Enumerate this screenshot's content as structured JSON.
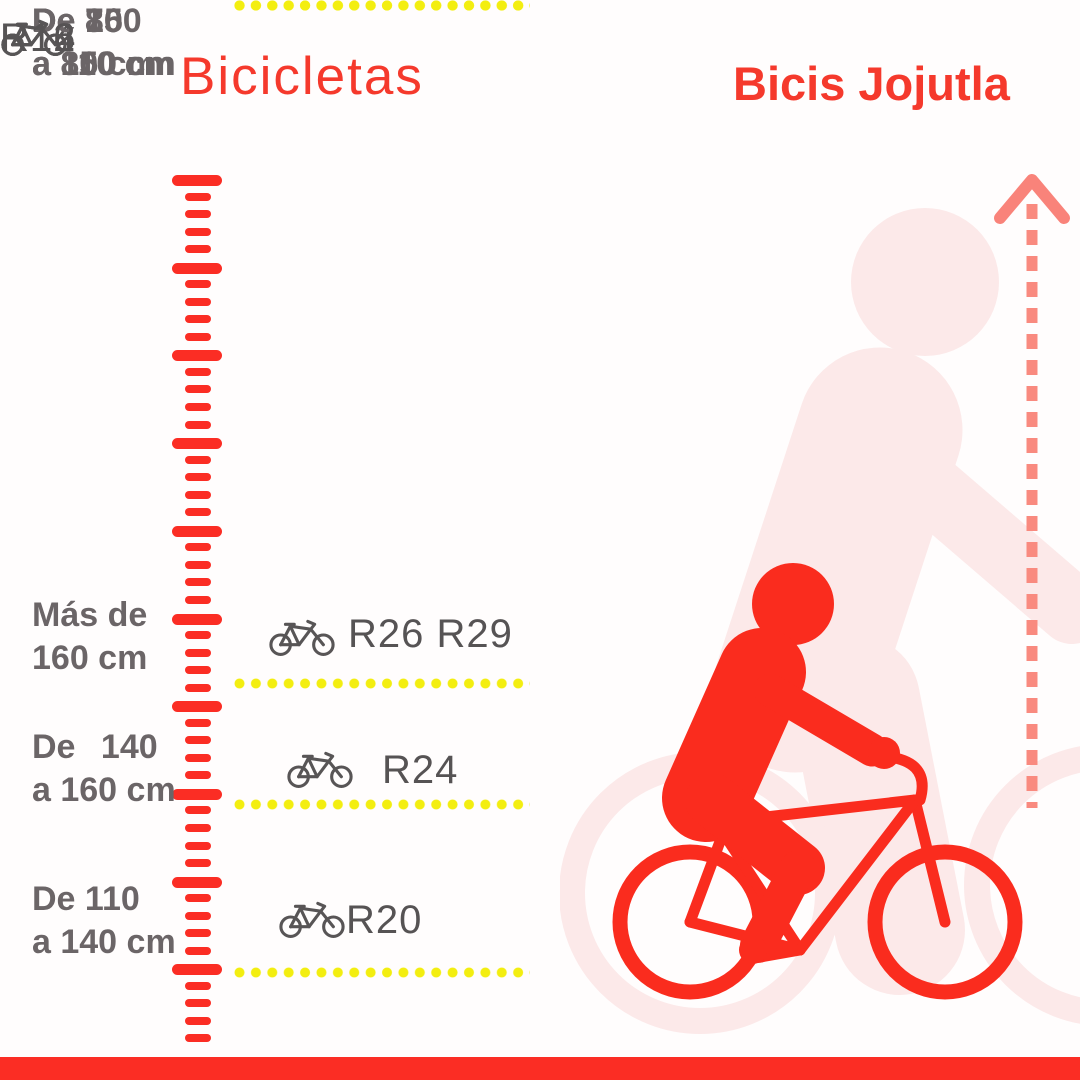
{
  "header": {
    "left_title": "Bicicletas",
    "brand": "Bicis Jojutla"
  },
  "rows": [
    {
      "height_line1": "Más de",
      "height_line2": "160 cm",
      "wheel_size": "R26 R29"
    },
    {
      "height_line1": "De 140",
      "height_line2": "a 160 cm",
      "wheel_size": "R24"
    },
    {
      "height_line1": "De 110",
      "height_line2": "a 140 cm",
      "wheel_size": "R20"
    },
    {
      "height_line1": "De 100",
      "height_line2": "a 110 cm",
      "wheel_size": "R16"
    },
    {
      "height_line1": "De 85",
      "height_line2": "a 100 cm",
      "wheel_size": "R14"
    },
    {
      "height_line1": "De 70",
      "height_line2": "a 85 cm",
      "wheel_size": "R12"
    }
  ],
  "icons": {
    "row_icon": "bicycle-icon",
    "ruler": "ruler-scale",
    "arrow": "up-arrow-icon",
    "foreground": "cyclist-silhouette",
    "background": "person-silhouette"
  },
  "colors": {
    "title_red": "#f5392c",
    "ruler_red": "#fb2d24",
    "accent_red": "#fa2c1e",
    "dot_yellow": "#f3ee10",
    "label_gray": "#6b6567",
    "size_gray": "#565354",
    "arrow_salmon": "#f98a7f",
    "silhouette_pink": "#fce9e9",
    "footer_red": "#fb2d24"
  }
}
